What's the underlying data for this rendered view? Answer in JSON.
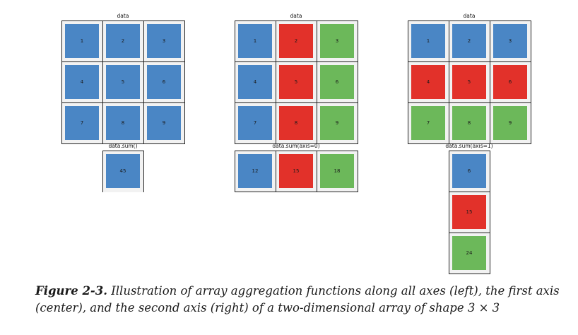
{
  "colors": {
    "blue": "#4a86c5",
    "red": "#e2312a",
    "green": "#6cb85a",
    "border": "#222222",
    "cell_bg": "#f2f2f2"
  },
  "panels": [
    {
      "id": "all-axes",
      "title": "data",
      "values": [
        [
          1,
          2,
          3
        ],
        [
          4,
          5,
          6
        ],
        [
          7,
          8,
          9
        ]
      ],
      "colors": [
        [
          "blue",
          "blue",
          "blue"
        ],
        [
          "blue",
          "blue",
          "blue"
        ],
        [
          "blue",
          "blue",
          "blue"
        ]
      ],
      "result_title": "data.sum()",
      "result_values": [
        [
          45
        ]
      ],
      "result_colors": [
        [
          "blue"
        ]
      ]
    },
    {
      "id": "axis-0",
      "title": "data",
      "values": [
        [
          1,
          2,
          3
        ],
        [
          4,
          5,
          6
        ],
        [
          7,
          8,
          9
        ]
      ],
      "colors": [
        [
          "blue",
          "red",
          "green"
        ],
        [
          "blue",
          "red",
          "green"
        ],
        [
          "blue",
          "red",
          "green"
        ]
      ],
      "result_title": "data.sum(axis=0)",
      "result_values": [
        [
          12,
          15,
          18
        ]
      ],
      "result_colors": [
        [
          "blue",
          "red",
          "green"
        ]
      ]
    },
    {
      "id": "axis-1",
      "title": "data",
      "values": [
        [
          1,
          2,
          3
        ],
        [
          4,
          5,
          6
        ],
        [
          7,
          8,
          9
        ]
      ],
      "colors": [
        [
          "blue",
          "blue",
          "blue"
        ],
        [
          "red",
          "red",
          "red"
        ],
        [
          "green",
          "green",
          "green"
        ]
      ],
      "result_title": "data.sum(axis=1)",
      "result_values": [
        [
          6
        ],
        [
          15
        ],
        [
          24
        ]
      ],
      "result_colors": [
        [
          "blue"
        ],
        [
          "red"
        ],
        [
          "green"
        ]
      ]
    }
  ],
  "caption": {
    "label": "Figure 2-3.",
    "text": "Illustration of array aggregation functions along all axes (left), the first axis (center), and the second axis (right) of a two-dimensional array of shape 3 × 3"
  }
}
